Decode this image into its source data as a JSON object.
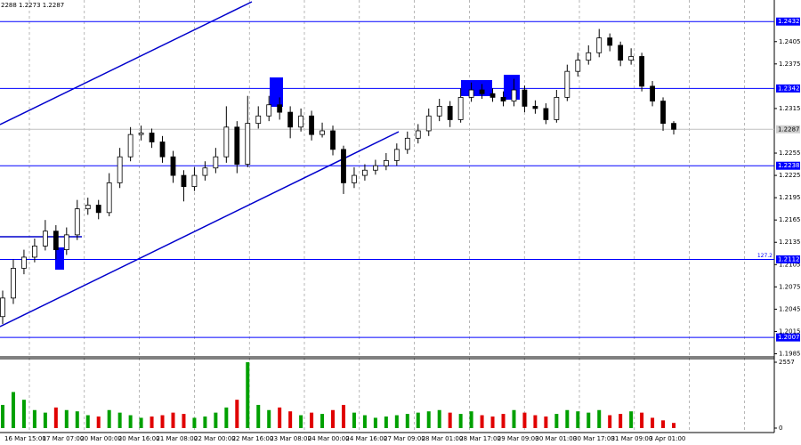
{
  "chart_data": {
    "type": "candlestick",
    "header": "2288 1.2273 1.2287",
    "x_labels": [
      "16 Mar 15:00",
      "17 Mar 07:00",
      "20 Mar 00:00",
      "20 Mar 16:00",
      "21 Mar 08:00",
      "22 Mar 00:00",
      "22 Mar 16:00",
      "23 Mar 08:00",
      "24 Mar 00:00",
      "24 Mar 16:00",
      "27 Mar 09:00",
      "28 Mar 01:00",
      "28 Mar 17:00",
      "29 Mar 09:00",
      "30 Mar 01:00",
      "30 Mar 17:00",
      "31 Mar 09:00",
      "3 Apr 01:00"
    ],
    "open": [
      1.2035,
      1.206,
      1.21,
      1.2115,
      1.213,
      1.215,
      1.2125,
      1.2145,
      1.218,
      1.2185,
      1.2175,
      1.2215,
      1.225,
      1.228,
      1.2282,
      1.227,
      1.225,
      1.2225,
      1.221,
      1.2225,
      1.2235,
      1.225,
      1.229,
      1.224,
      1.2295,
      1.2305,
      1.232,
      1.231,
      1.229,
      1.2305,
      1.228,
      1.2285,
      1.226,
      1.2215,
      1.2225,
      1.2232,
      1.2238,
      1.2245,
      1.226,
      1.2275,
      1.2285,
      1.2305,
      1.2318,
      1.23,
      1.233,
      1.234,
      1.2335,
      1.233,
      1.2325,
      1.234,
      1.2318,
      1.2315,
      1.23,
      1.233,
      1.2365,
      1.238,
      1.239,
      1.241,
      1.24,
      1.238,
      1.2385,
      1.2345,
      1.2325,
      1.2295
    ],
    "high": [
      1.207,
      1.2112,
      1.2125,
      1.214,
      1.2165,
      1.2158,
      1.2155,
      1.2192,
      1.2195,
      1.2192,
      1.2228,
      1.2262,
      1.229,
      1.2292,
      1.2288,
      1.2278,
      1.2258,
      1.2232,
      1.2236,
      1.2244,
      1.2262,
      1.2318,
      1.2298,
      1.2332,
      1.2318,
      1.2332,
      1.233,
      1.2318,
      1.2315,
      1.2312,
      1.2296,
      1.2292,
      1.2265,
      1.2236,
      1.224,
      1.2246,
      1.2255,
      1.2268,
      1.2284,
      1.2294,
      1.2315,
      1.2328,
      1.2325,
      1.2342,
      1.235,
      1.2348,
      1.2342,
      1.2338,
      1.2355,
      1.2346,
      1.2326,
      1.2322,
      1.234,
      1.2374,
      1.239,
      1.24,
      1.2422,
      1.2416,
      1.2405,
      1.2396,
      1.239,
      1.2352,
      1.233,
      1.2298
    ],
    "low": [
      1.2025,
      1.2052,
      1.2092,
      1.2108,
      1.2124,
      1.2112,
      1.2118,
      1.2138,
      1.2172,
      1.2166,
      1.217,
      1.2208,
      1.2244,
      1.2272,
      1.2262,
      1.2242,
      1.2215,
      1.219,
      1.2204,
      1.2218,
      1.2228,
      1.2242,
      1.2228,
      1.2236,
      1.2288,
      1.2298,
      1.23,
      1.2275,
      1.2284,
      1.2272,
      1.2276,
      1.2252,
      1.22,
      1.2208,
      1.2218,
      1.2226,
      1.2232,
      1.2238,
      1.2254,
      1.2268,
      1.2278,
      1.2298,
      1.229,
      1.2296,
      1.2324,
      1.2328,
      1.2324,
      1.2318,
      1.2318,
      1.231,
      1.2308,
      1.2294,
      1.2296,
      1.2325,
      1.2358,
      1.2374,
      1.2384,
      1.2392,
      1.2372,
      1.2374,
      1.2338,
      1.2318,
      1.2285,
      1.228
    ],
    "close": [
      1.206,
      1.21,
      1.2115,
      1.213,
      1.215,
      1.2125,
      1.2145,
      1.218,
      1.2185,
      1.2175,
      1.2215,
      1.225,
      1.228,
      1.2282,
      1.227,
      1.225,
      1.2225,
      1.221,
      1.2225,
      1.2235,
      1.225,
      1.229,
      1.224,
      1.2295,
      1.2305,
      1.232,
      1.231,
      1.229,
      1.2305,
      1.228,
      1.2285,
      1.226,
      1.2215,
      1.2225,
      1.2232,
      1.2238,
      1.2245,
      1.226,
      1.2275,
      1.2285,
      1.2305,
      1.2318,
      1.23,
      1.233,
      1.234,
      1.2335,
      1.233,
      1.2325,
      1.234,
      1.2318,
      1.2315,
      1.23,
      1.233,
      1.2365,
      1.238,
      1.239,
      1.241,
      1.24,
      1.238,
      1.2385,
      1.2345,
      1.2325,
      1.2295,
      1.2287
    ],
    "volume": [
      900,
      1400,
      1100,
      700,
      600,
      800,
      700,
      650,
      500,
      450,
      700,
      600,
      500,
      400,
      450,
      500,
      600,
      550,
      400,
      450,
      600,
      800,
      1100,
      2557,
      900,
      700,
      800,
      650,
      500,
      600,
      550,
      700,
      900,
      600,
      500,
      400,
      450,
      500,
      550,
      600,
      650,
      700,
      600,
      550,
      650,
      500,
      450,
      550,
      700,
      600,
      500,
      450,
      550,
      700,
      650,
      600,
      700,
      500,
      550,
      650,
      600,
      400,
      300,
      200
    ],
    "ylim": [
      1.1982,
      1.2461
    ],
    "yticks": [
      1.1985,
      1.2015,
      1.2045,
      1.2075,
      1.2105,
      1.2135,
      1.2165,
      1.2195,
      1.2225,
      1.2255,
      1.2315,
      1.2375,
      1.2405
    ],
    "levels": [
      1.2432,
      1.2342,
      1.2238,
      1.2112,
      1.2007
    ],
    "level_color": "#0000ff",
    "level_annotation": "127.2",
    "current_price": 1.2287,
    "volume_ylim": [
      0,
      2557
    ],
    "volume_yticks": [
      0,
      2557
    ],
    "up_volume_color": "#00a000",
    "down_volume_color": "#e00000"
  }
}
